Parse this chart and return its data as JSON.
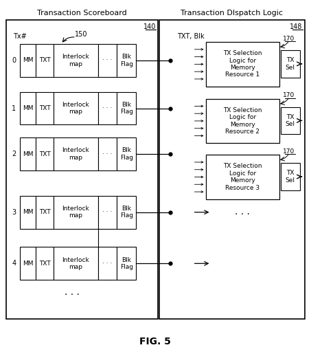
{
  "title": "FIG. 5",
  "left_box_title": "Transaction Scoreboard",
  "right_box_title": "Transaction DIspatch Logic",
  "left_label_num": "140",
  "right_label_num": "148",
  "scoreboard_label": "150",
  "tx_row_labels": [
    "0",
    "1",
    "2",
    "3",
    "4"
  ],
  "tx_selection_boxes": [
    {
      "label": "TX Selection\nLogic for\nMemory\nResource 1",
      "num": "170"
    },
    {
      "label": "TX Selection\nLogic for\nMemory\nResource 2",
      "num": "170"
    },
    {
      "label": "TX Selection\nLogic for\nMemory\nResource 3",
      "num": "170"
    }
  ],
  "tx_sel_label": "TX\nSel",
  "txt_blk_label": "TXT, Blk",
  "tx_hash_label": "Tx#",
  "bg_color": "#ffffff",
  "box_color": "#000000",
  "box_fill": "#ffffff",
  "text_color": "#000000",
  "font_size": 7,
  "small_font": 6
}
